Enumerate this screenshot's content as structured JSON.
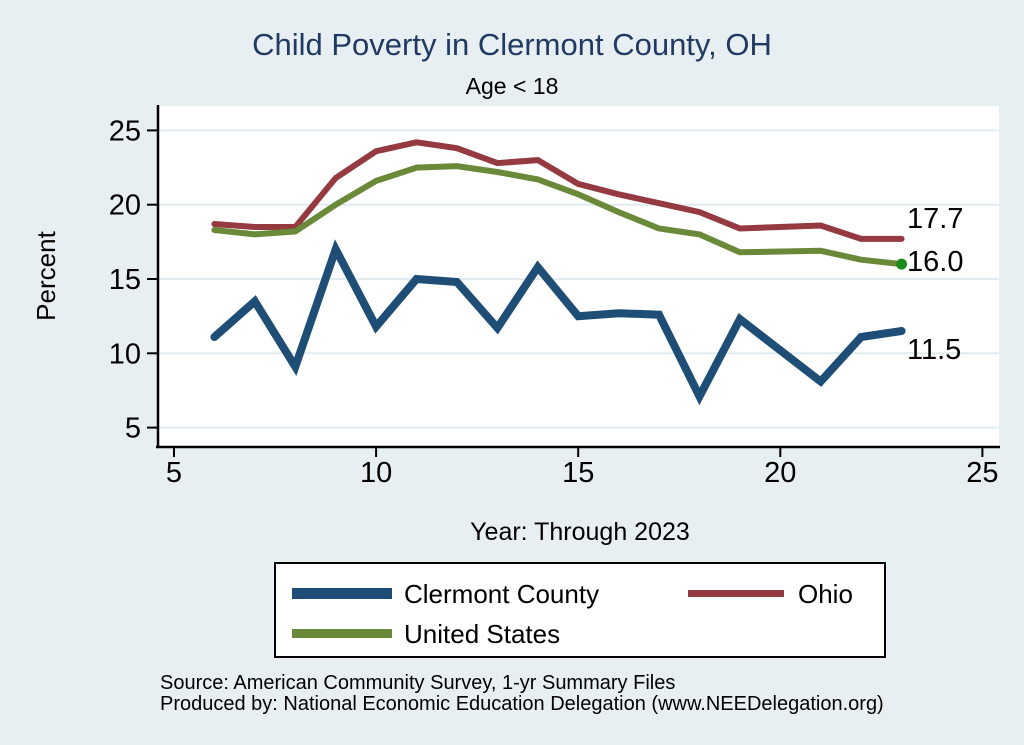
{
  "header": {
    "title": "Child Poverty in Clermont County, OH",
    "subtitle": "Age < 18"
  },
  "chart_data": {
    "type": "line",
    "title": "Child Poverty in Clermont County, OH",
    "subtitle": "Age < 18",
    "xlabel": "Year: Through 2023",
    "ylabel": "Percent",
    "x_ticks": [
      5,
      10,
      15,
      20,
      25
    ],
    "y_ticks": [
      5,
      10,
      15,
      20,
      25
    ],
    "xlim": [
      4.6,
      25.4
    ],
    "ylim": [
      3.7,
      26.5
    ],
    "grid": "horizontal-only",
    "legend_position": "bottom",
    "background_color": "#e8eff2",
    "plot_background_color": "#ffffff",
    "gridline_color": "#e2ecf0",
    "title_color": "#203a63",
    "x": [
      6,
      7,
      8,
      9,
      10,
      11,
      12,
      13,
      14,
      15,
      16,
      17,
      18,
      19,
      21,
      22,
      23
    ],
    "series": [
      {
        "name": "Clermont County",
        "color": "#1e4e75",
        "line_width": 8,
        "end_label": "11.5",
        "values": [
          11.1,
          13.5,
          9.1,
          17.0,
          11.8,
          15.0,
          14.8,
          11.7,
          15.8,
          12.5,
          12.7,
          12.6,
          7.1,
          12.3,
          8.1,
          11.1,
          11.5
        ]
      },
      {
        "name": "Ohio",
        "color": "#943a40",
        "line_width": 6,
        "end_label": "17.7",
        "values": [
          18.7,
          18.5,
          18.5,
          21.8,
          23.6,
          24.2,
          23.8,
          22.8,
          23.0,
          21.4,
          20.7,
          20.1,
          19.5,
          18.4,
          18.6,
          17.7,
          17.7
        ]
      },
      {
        "name": "United States",
        "color": "#6a8939",
        "line_width": 6,
        "end_label": "16.0",
        "end_marker_color": "#1b8c1b",
        "values": [
          18.3,
          18.0,
          18.2,
          20.0,
          21.6,
          22.5,
          22.6,
          22.2,
          21.7,
          20.7,
          19.5,
          18.4,
          18.0,
          16.8,
          16.9,
          16.3,
          16.0
        ]
      }
    ]
  },
  "footer": {
    "source": "Source: American Community Survey, 1-yr Summary Files",
    "produced_by": "Produced by: National Economic Education Delegation (www.NEEDelegation.org)"
  }
}
